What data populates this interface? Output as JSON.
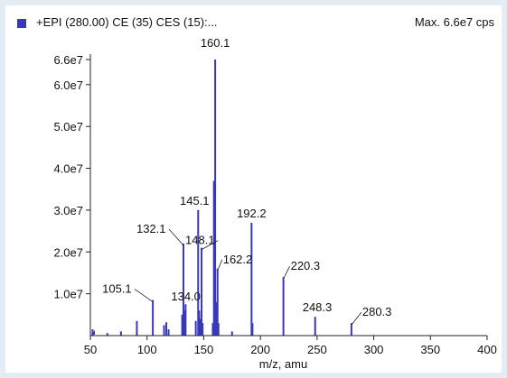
{
  "header": {
    "legend": "+EPI (280.00) CE (35) CES (15):...",
    "max": "Max. 6.6e7 cps"
  },
  "colors": {
    "series": "#3939b8",
    "axis": "#222222",
    "background": "#ffffff",
    "border": "#e3edf3"
  },
  "chart_data": {
    "type": "bar",
    "title": "",
    "xlabel": "m/z, amu",
    "ylabel": "",
    "xlim": [
      50,
      400
    ],
    "ylim": [
      0,
      66000000.0
    ],
    "xticks": [
      {
        "value": 50,
        "label": "50"
      },
      {
        "value": 100,
        "label": "100"
      },
      {
        "value": 150,
        "label": "150"
      },
      {
        "value": 200,
        "label": "200"
      },
      {
        "value": 250,
        "label": "250"
      },
      {
        "value": 300,
        "label": "300"
      },
      {
        "value": 350,
        "label": "350"
      },
      {
        "value": 400,
        "label": "400"
      }
    ],
    "yticks": [
      {
        "value": 10000000,
        "label": "1.0e7"
      },
      {
        "value": 20000000,
        "label": "2.0e7"
      },
      {
        "value": 30000000,
        "label": "3.0e7"
      },
      {
        "value": 40000000,
        "label": "4.0e7"
      },
      {
        "value": 50000000,
        "label": "5.0e7"
      },
      {
        "value": 60000000,
        "label": "6.0e7"
      },
      {
        "value": 66000000,
        "label": "6.6e7"
      }
    ],
    "peaks": [
      {
        "mz": 52,
        "intensity": 1500000
      },
      {
        "mz": 65,
        "intensity": 600000
      },
      {
        "mz": 77,
        "intensity": 1000000
      },
      {
        "mz": 91,
        "intensity": 3500000
      },
      {
        "mz": 105.1,
        "intensity": 8500000
      },
      {
        "mz": 115,
        "intensity": 2500000
      },
      {
        "mz": 117,
        "intensity": 3200000
      },
      {
        "mz": 119,
        "intensity": 1500000
      },
      {
        "mz": 131,
        "intensity": 5000000
      },
      {
        "mz": 132.1,
        "intensity": 22000000
      },
      {
        "mz": 133,
        "intensity": 6000000
      },
      {
        "mz": 134.0,
        "intensity": 7500000
      },
      {
        "mz": 143,
        "intensity": 3500000
      },
      {
        "mz": 145.1,
        "intensity": 30000000
      },
      {
        "mz": 146,
        "intensity": 6000000
      },
      {
        "mz": 147,
        "intensity": 4000000
      },
      {
        "mz": 148.1,
        "intensity": 21000000
      },
      {
        "mz": 149,
        "intensity": 3000000
      },
      {
        "mz": 158,
        "intensity": 3000000
      },
      {
        "mz": 159,
        "intensity": 37000000
      },
      {
        "mz": 160.1,
        "intensity": 66000000
      },
      {
        "mz": 161,
        "intensity": 8000000
      },
      {
        "mz": 162.2,
        "intensity": 16000000
      },
      {
        "mz": 163,
        "intensity": 3000000
      },
      {
        "mz": 175,
        "intensity": 1000000
      },
      {
        "mz": 192.2,
        "intensity": 27000000
      },
      {
        "mz": 193,
        "intensity": 3000000
      },
      {
        "mz": 220.3,
        "intensity": 14000000
      },
      {
        "mz": 248.3,
        "intensity": 4500000
      },
      {
        "mz": 280.3,
        "intensity": 3000000
      }
    ],
    "annotations": [
      {
        "text": "160.1",
        "mz": 160.1
      },
      {
        "text": "145.1",
        "mz": 145.1
      },
      {
        "text": "192.2",
        "mz": 192.2
      },
      {
        "text": "132.1",
        "mz": 132.1
      },
      {
        "text": "148.1",
        "mz": 148.1
      },
      {
        "text": "162.2",
        "mz": 162.2
      },
      {
        "text": "220.3",
        "mz": 220.3
      },
      {
        "text": "105.1",
        "mz": 105.1
      },
      {
        "text": "134.0",
        "mz": 134.0
      },
      {
        "text": "248.3",
        "mz": 248.3
      },
      {
        "text": "280.3",
        "mz": 280.3
      }
    ]
  }
}
